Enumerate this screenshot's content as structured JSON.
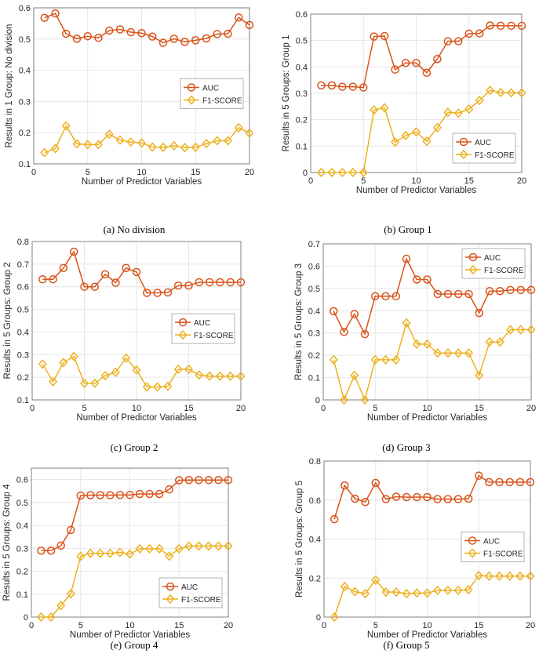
{
  "colors": {
    "auc": "#d95319",
    "f1": "#edb120",
    "grid": "#e6e6e6",
    "axis": "#7f7f7f"
  },
  "chart_data": [
    {
      "type": "line",
      "caption": "(a) No division",
      "xlabel": "Number of Predictor Variables",
      "ylabel": "Results in 1 Group: No division",
      "xlim": [
        0,
        20
      ],
      "ylim": [
        0.1,
        0.6
      ],
      "xticks": [
        "0",
        "5",
        "10",
        "15",
        "20"
      ],
      "yticks": [
        "0.1",
        "0.2",
        "0.3",
        "0.4",
        "0.5",
        "0.6"
      ],
      "ytick_values": [
        0.1,
        0.2,
        0.3,
        0.4,
        0.5,
        0.6
      ],
      "grid": true,
      "legend": "center-right",
      "x": [
        1,
        2,
        3,
        4,
        5,
        6,
        7,
        8,
        9,
        10,
        11,
        12,
        13,
        14,
        15,
        16,
        17,
        18,
        19,
        20
      ],
      "series": [
        {
          "name": "AUC",
          "marker": "circle",
          "values": [
            0.568,
            0.582,
            0.517,
            0.501,
            0.509,
            0.504,
            0.527,
            0.531,
            0.522,
            0.519,
            0.508,
            0.488,
            0.501,
            0.491,
            0.496,
            0.502,
            0.516,
            0.517,
            0.569,
            0.545
          ]
        },
        {
          "name": "F1-SCORE",
          "marker": "diamond",
          "values": [
            0.136,
            0.149,
            0.222,
            0.164,
            0.162,
            0.162,
            0.195,
            0.176,
            0.17,
            0.167,
            0.154,
            0.153,
            0.158,
            0.152,
            0.153,
            0.165,
            0.174,
            0.174,
            0.216,
            0.199
          ]
        }
      ]
    },
    {
      "type": "line",
      "caption": "(b) Group 1",
      "xlabel": "Number of Predictor Variables",
      "ylabel": "Results in 5 Groups: Group 1",
      "xlim": [
        0,
        20
      ],
      "ylim": [
        0,
        0.6
      ],
      "xticks": [
        "0",
        "5",
        "10",
        "15",
        "20"
      ],
      "yticks": [
        "0",
        "0.1",
        "0.2",
        "0.3",
        "0.4",
        "0.5",
        "0.6"
      ],
      "ytick_values": [
        0,
        0.1,
        0.2,
        0.3,
        0.4,
        0.5,
        0.6
      ],
      "grid": true,
      "legend": "bottom-right",
      "x": [
        1,
        2,
        3,
        4,
        5,
        6,
        7,
        8,
        9,
        10,
        11,
        12,
        13,
        14,
        15,
        16,
        17,
        18,
        19,
        20
      ],
      "series": [
        {
          "name": "AUC",
          "marker": "circle",
          "values": [
            0.33,
            0.33,
            0.325,
            0.325,
            0.322,
            0.515,
            0.517,
            0.39,
            0.415,
            0.415,
            0.378,
            0.43,
            0.497,
            0.497,
            0.526,
            0.527,
            0.557,
            0.556,
            0.556,
            0.556
          ]
        },
        {
          "name": "F1-SCORE",
          "marker": "diamond",
          "values": [
            0,
            0,
            0,
            0,
            0,
            0.237,
            0.245,
            0.115,
            0.14,
            0.154,
            0.118,
            0.17,
            0.228,
            0.225,
            0.24,
            0.273,
            0.311,
            0.303,
            0.302,
            0.302
          ]
        }
      ]
    },
    {
      "type": "line",
      "caption": "(c) Group 2",
      "xlabel": "Number of Predictor Variables",
      "ylabel": "Results in 5 Groups: Group 2",
      "xlim": [
        0,
        20
      ],
      "ylim": [
        0.1,
        0.8
      ],
      "xticks": [
        "0",
        "5",
        "10",
        "15",
        "20"
      ],
      "yticks": [
        "0.1",
        "0.2",
        "0.3",
        "0.4",
        "0.5",
        "0.6",
        "0.7",
        "0.8"
      ],
      "ytick_values": [
        0.1,
        0.2,
        0.3,
        0.4,
        0.5,
        0.6,
        0.7,
        0.8
      ],
      "grid": true,
      "legend": "center-right",
      "x": [
        1,
        2,
        3,
        4,
        5,
        6,
        7,
        8,
        9,
        10,
        11,
        12,
        13,
        14,
        15,
        16,
        17,
        18,
        19,
        20
      ],
      "series": [
        {
          "name": "AUC",
          "marker": "circle",
          "values": [
            0.633,
            0.633,
            0.683,
            0.755,
            0.6,
            0.6,
            0.655,
            0.618,
            0.683,
            0.665,
            0.573,
            0.573,
            0.575,
            0.605,
            0.605,
            0.62,
            0.62,
            0.62,
            0.62,
            0.62
          ]
        },
        {
          "name": "F1-SCORE",
          "marker": "diamond",
          "values": [
            0.258,
            0.18,
            0.265,
            0.292,
            0.173,
            0.173,
            0.207,
            0.222,
            0.285,
            0.232,
            0.157,
            0.157,
            0.16,
            0.235,
            0.235,
            0.21,
            0.205,
            0.205,
            0.205,
            0.205
          ]
        }
      ]
    },
    {
      "type": "line",
      "caption": "(d) Group 3",
      "xlabel": "Number of Predictor Variables",
      "ylabel": "Results in 5 Groups: Group 3",
      "xlim": [
        0,
        20
      ],
      "ylim": [
        0,
        0.7
      ],
      "xticks": [
        "0",
        "5",
        "10",
        "15",
        "20"
      ],
      "yticks": [
        "0",
        "0.1",
        "0.2",
        "0.3",
        "0.4",
        "0.5",
        "0.6",
        "0.7"
      ],
      "ytick_values": [
        0,
        0.1,
        0.2,
        0.3,
        0.4,
        0.5,
        0.6,
        0.7
      ],
      "grid": true,
      "legend": "top-right",
      "x": [
        1,
        2,
        3,
        4,
        5,
        6,
        7,
        8,
        9,
        10,
        11,
        12,
        13,
        14,
        15,
        16,
        17,
        18,
        19,
        20
      ],
      "series": [
        {
          "name": "AUC",
          "marker": "circle",
          "values": [
            0.398,
            0.305,
            0.385,
            0.295,
            0.465,
            0.465,
            0.465,
            0.633,
            0.54,
            0.54,
            0.475,
            0.475,
            0.475,
            0.475,
            0.39,
            0.488,
            0.488,
            0.493,
            0.493,
            0.493
          ]
        },
        {
          "name": "F1-SCORE",
          "marker": "diamond",
          "values": [
            0.18,
            0,
            0.11,
            0,
            0.18,
            0.18,
            0.18,
            0.345,
            0.25,
            0.25,
            0.21,
            0.21,
            0.21,
            0.21,
            0.11,
            0.26,
            0.26,
            0.315,
            0.315,
            0.315
          ]
        }
      ]
    },
    {
      "type": "line",
      "caption": "(e) Group 4",
      "xlabel": "Number of Predictor Variables",
      "ylabel": "Results in 5 Groups: Group 4",
      "xlim": [
        0,
        20
      ],
      "ylim": [
        0,
        0.65
      ],
      "xticks": [
        "0",
        "5",
        "10",
        "15",
        "20"
      ],
      "yticks": [
        "0",
        "0.1",
        "0.2",
        "0.3",
        "0.4",
        "0.5",
        "0.6"
      ],
      "ytick_values": [
        0,
        0.1,
        0.2,
        0.3,
        0.4,
        0.5,
        0.6
      ],
      "grid": true,
      "legend": "bottom-right",
      "x": [
        1,
        2,
        3,
        4,
        5,
        6,
        7,
        8,
        9,
        10,
        11,
        12,
        13,
        14,
        15,
        16,
        17,
        18,
        19,
        20
      ],
      "series": [
        {
          "name": "AUC",
          "marker": "circle",
          "values": [
            0.29,
            0.29,
            0.312,
            0.38,
            0.53,
            0.532,
            0.532,
            0.532,
            0.533,
            0.533,
            0.537,
            0.537,
            0.537,
            0.557,
            0.597,
            0.598,
            0.598,
            0.598,
            0.598,
            0.598
          ]
        },
        {
          "name": "F1-SCORE",
          "marker": "diamond",
          "values": [
            0,
            0,
            0.05,
            0.102,
            0.265,
            0.278,
            0.278,
            0.278,
            0.282,
            0.275,
            0.298,
            0.298,
            0.298,
            0.266,
            0.298,
            0.31,
            0.31,
            0.31,
            0.31,
            0.31
          ]
        }
      ]
    },
    {
      "type": "line",
      "caption": "(f) Group 5",
      "xlabel": "Number of Predictor Variables",
      "ylabel": "Results in 5 Groups: Group 5",
      "xlim": [
        0,
        20
      ],
      "ylim": [
        0,
        0.8
      ],
      "xticks": [
        "0",
        "5",
        "10",
        "15",
        "20"
      ],
      "yticks": [
        "0",
        "0.2",
        "0.4",
        "0.6",
        "0.8"
      ],
      "ytick_values": [
        0,
        0.2,
        0.4,
        0.6,
        0.8
      ],
      "grid": true,
      "legend": "center-right",
      "x": [
        1,
        2,
        3,
        4,
        5,
        6,
        7,
        8,
        9,
        10,
        11,
        12,
        13,
        14,
        15,
        16,
        17,
        18,
        19,
        20
      ],
      "series": [
        {
          "name": "AUC",
          "marker": "circle",
          "values": [
            0.502,
            0.675,
            0.607,
            0.59,
            0.688,
            0.605,
            0.617,
            0.615,
            0.615,
            0.615,
            0.605,
            0.605,
            0.605,
            0.607,
            0.725,
            0.692,
            0.692,
            0.692,
            0.692,
            0.692
          ]
        },
        {
          "name": "F1-SCORE",
          "marker": "diamond",
          "values": [
            0,
            0.157,
            0.13,
            0.12,
            0.19,
            0.128,
            0.128,
            0.12,
            0.123,
            0.123,
            0.137,
            0.137,
            0.137,
            0.14,
            0.213,
            0.21,
            0.21,
            0.21,
            0.21,
            0.21
          ]
        }
      ]
    }
  ]
}
